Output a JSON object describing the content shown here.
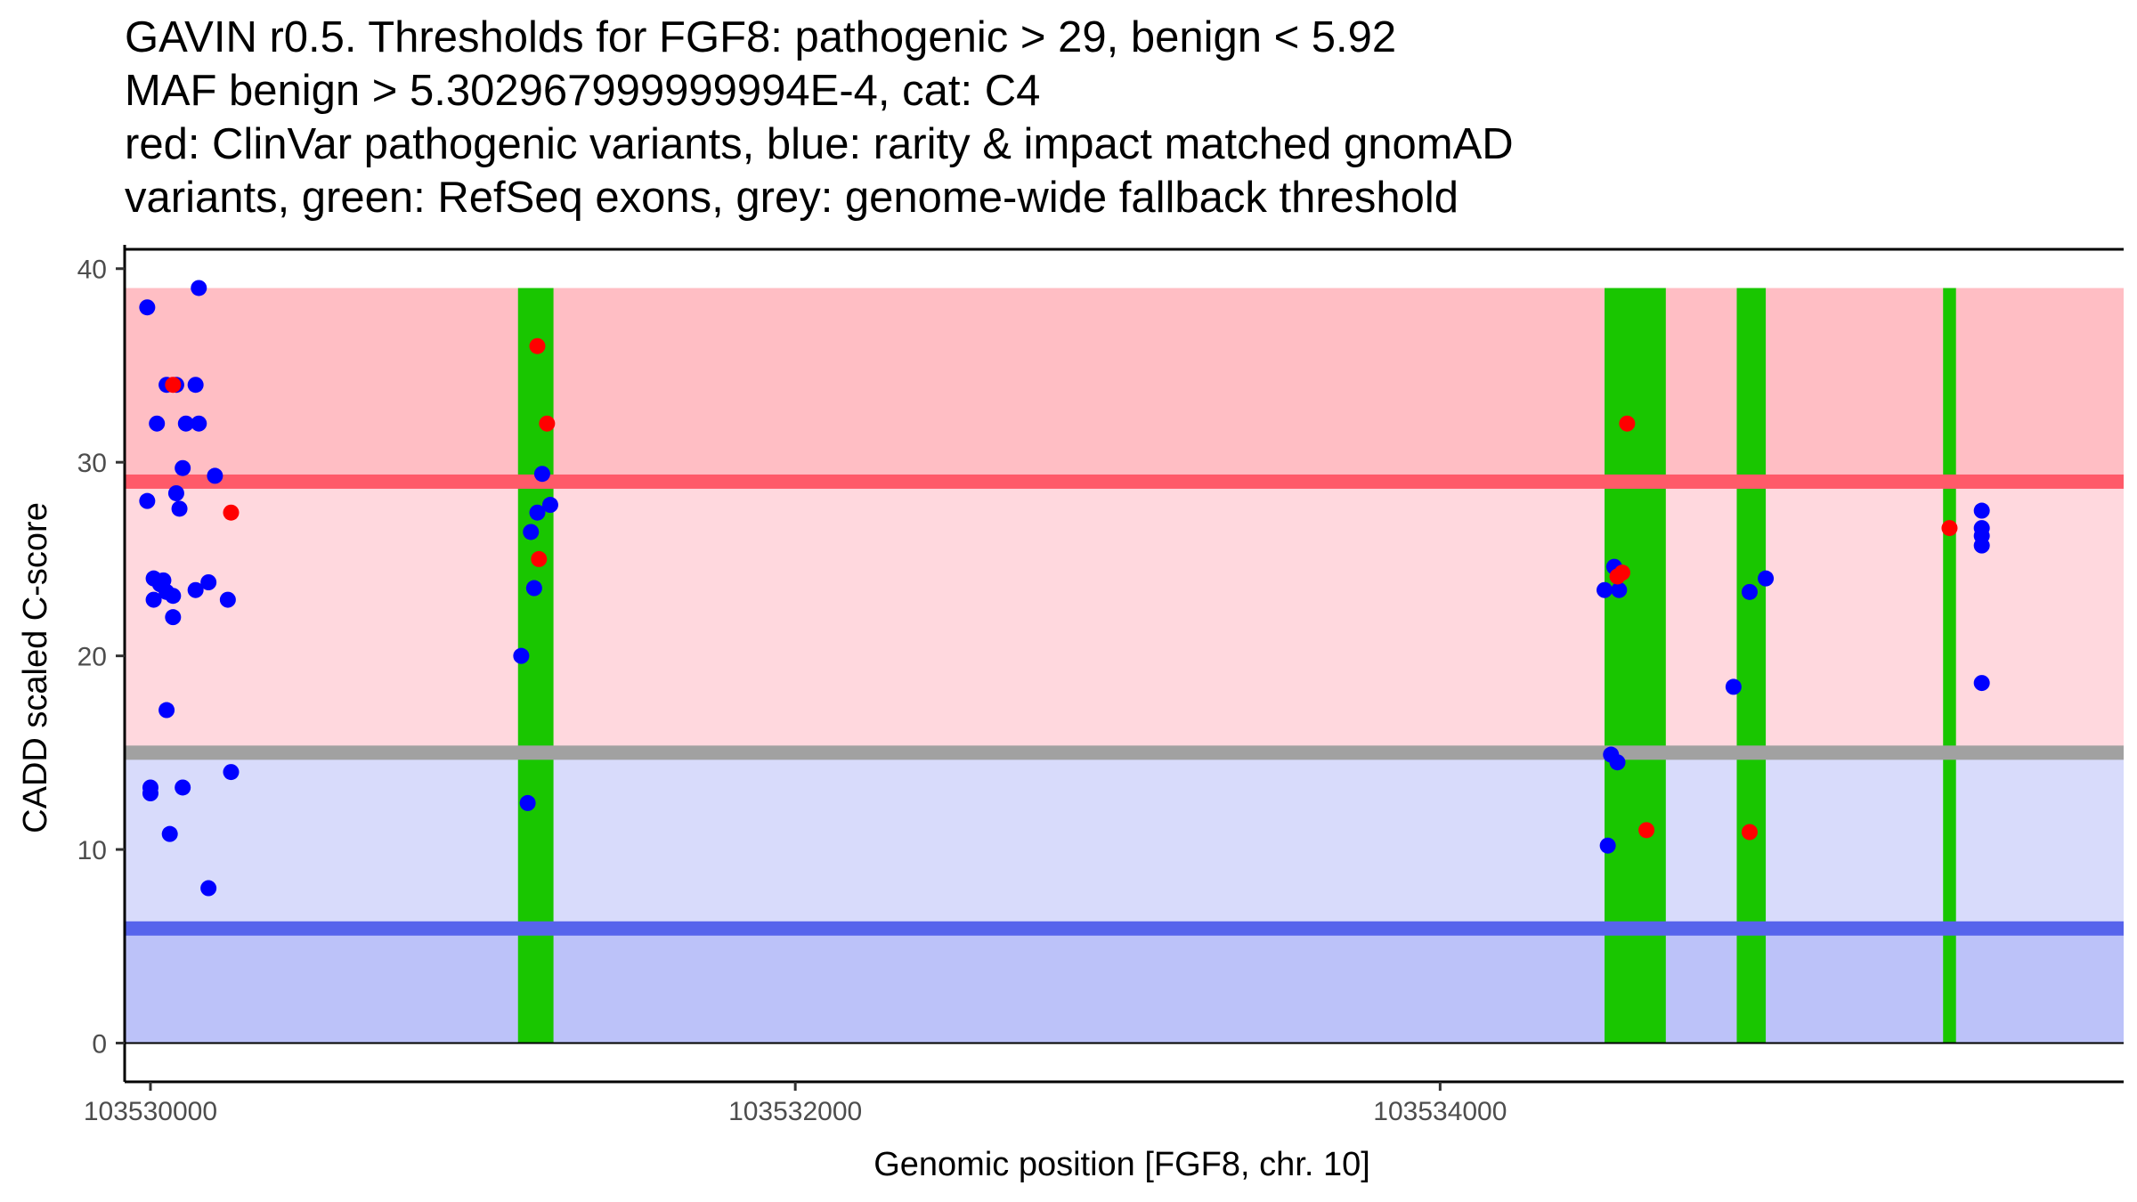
{
  "title_lines": [
    "GAVIN r0.5. Thresholds for FGF8: pathogenic > 29, benign < 5.92",
    "MAF benign > 5.302967999999994E-4, cat: C4",
    "red: ClinVar pathogenic variants, blue: rarity & impact matched gnomAD",
    "variants, green: RefSeq exons, grey: genome-wide fallback threshold"
  ],
  "chart_data": {
    "type": "scatter",
    "xlabel": "Genomic position [FGF8, chr. 10]",
    "ylabel": "CADD scaled C-score",
    "xlim": [
      103529920,
      103536120
    ],
    "ylim": [
      -2,
      41
    ],
    "xticks": [
      103530000,
      103532000,
      103534000
    ],
    "xtick_labels": [
      "103530000",
      "103532000",
      "103534000"
    ],
    "yticks": [
      0,
      10,
      20,
      30,
      40
    ],
    "ytick_labels": [
      "0",
      "10",
      "20",
      "30",
      "40"
    ],
    "thresholds": {
      "pathogenic": 29,
      "benign": 5.92,
      "genome_wide_fallback": 15,
      "max_score": 39
    },
    "colors": {
      "pathogenic_region": "#ffbec4",
      "intermediate_region": "#ffd8de",
      "benign_region": "#d8dbfb",
      "lowest_region": "#bcc2f9",
      "pathogenic_line": "#ff5a69",
      "benign_line": "#5764ec",
      "fallback_line": "#a1a1a1",
      "exon": "#19c600",
      "clinvar": "#ff0000",
      "gnomad": "#0000ff"
    },
    "exons": [
      {
        "start": 103531140,
        "end": 103531250
      },
      {
        "start": 103534510,
        "end": 103534700
      },
      {
        "start": 103534920,
        "end": 103535010
      },
      {
        "start": 103535560,
        "end": 103535600
      }
    ],
    "series": [
      {
        "name": "ClinVar pathogenic variants",
        "color": "#ff0000",
        "points": [
          [
            103530070,
            34
          ],
          [
            103530250,
            27.4
          ],
          [
            103531200,
            36
          ],
          [
            103531230,
            32
          ],
          [
            103531205,
            25
          ],
          [
            103534580,
            32
          ],
          [
            103534550,
            24.1
          ],
          [
            103534565,
            24.3
          ],
          [
            103534640,
            11
          ],
          [
            103534960,
            10.9
          ],
          [
            103535580,
            26.6
          ]
        ]
      },
      {
        "name": "rarity & impact matched gnomAD variants",
        "color": "#0000ff",
        "points": [
          [
            103529990,
            38
          ],
          [
            103530150,
            39
          ],
          [
            103530020,
            32
          ],
          [
            103530050,
            34
          ],
          [
            103530080,
            34
          ],
          [
            103530140,
            34
          ],
          [
            103530110,
            32
          ],
          [
            103530150,
            32
          ],
          [
            103530100,
            29.7
          ],
          [
            103530200,
            29.3
          ],
          [
            103530080,
            28.4
          ],
          [
            103530090,
            27.6
          ],
          [
            103529990,
            28
          ],
          [
            103530010,
            24
          ],
          [
            103530030,
            23.7
          ],
          [
            103530040,
            23.9
          ],
          [
            103530010,
            22.9
          ],
          [
            103530050,
            23.3
          ],
          [
            103530070,
            23.1
          ],
          [
            103530140,
            23.4
          ],
          [
            103530180,
            23.8
          ],
          [
            103530240,
            22.9
          ],
          [
            103530070,
            22
          ],
          [
            103530050,
            17.2
          ],
          [
            103530000,
            13.2
          ],
          [
            103530000,
            12.9
          ],
          [
            103530100,
            13.2
          ],
          [
            103530250,
            14
          ],
          [
            103530060,
            10.8
          ],
          [
            103530180,
            8
          ],
          [
            103531150,
            20
          ],
          [
            103531170,
            12.4
          ],
          [
            103531180,
            26.4
          ],
          [
            103531190,
            23.5
          ],
          [
            103531200,
            27.4
          ],
          [
            103531215,
            29.4
          ],
          [
            103531240,
            27.8
          ],
          [
            103534510,
            23.4
          ],
          [
            103534540,
            24.6
          ],
          [
            103534555,
            23.4
          ],
          [
            103534520,
            10.2
          ],
          [
            103534530,
            14.9
          ],
          [
            103534550,
            14.5
          ],
          [
            103534910,
            18.4
          ],
          [
            103534960,
            23.3
          ],
          [
            103535010,
            24
          ],
          [
            103535680,
            27.5
          ],
          [
            103535680,
            26.6
          ],
          [
            103535680,
            26.2
          ],
          [
            103535680,
            25.7
          ],
          [
            103535680,
            18.6
          ]
        ]
      }
    ]
  }
}
